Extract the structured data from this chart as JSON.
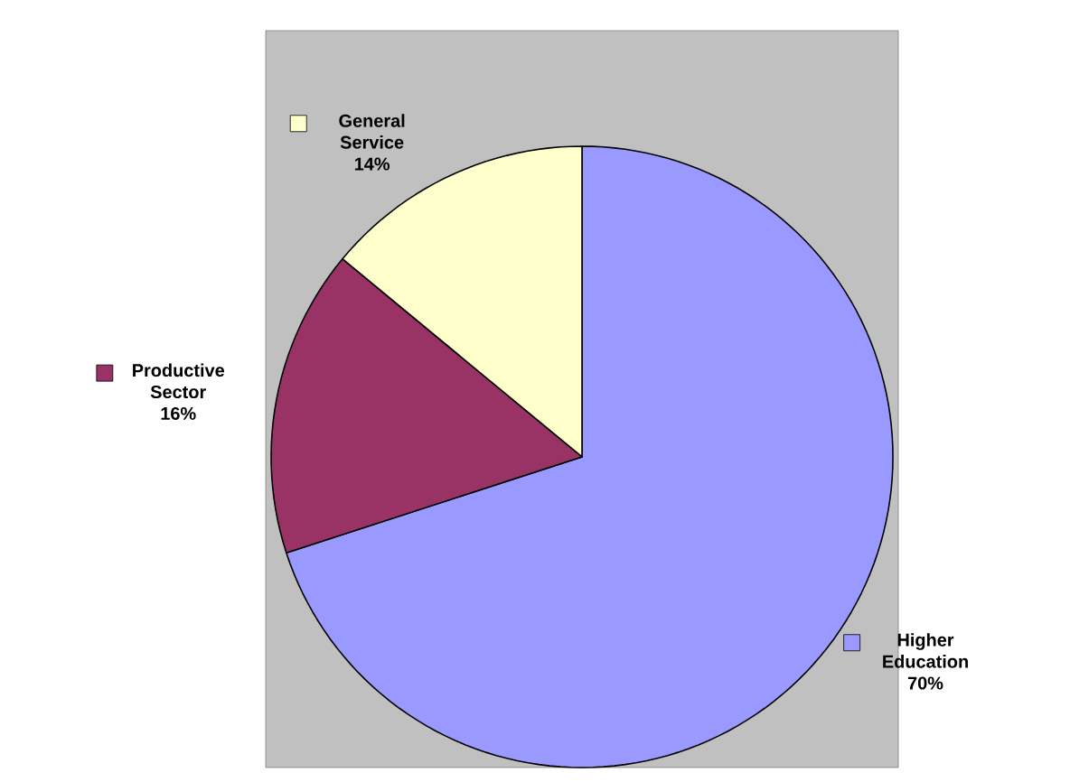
{
  "chart_data": {
    "type": "pie",
    "categories": [
      "Higher Education",
      "Productive Sector",
      "General Service"
    ],
    "values": [
      70,
      16,
      14
    ],
    "colors": [
      "#9999ff",
      "#993366",
      "#ffffcc"
    ],
    "value_labels": [
      "70%",
      "16%",
      "14%"
    ],
    "legend": "top left"
  }
}
